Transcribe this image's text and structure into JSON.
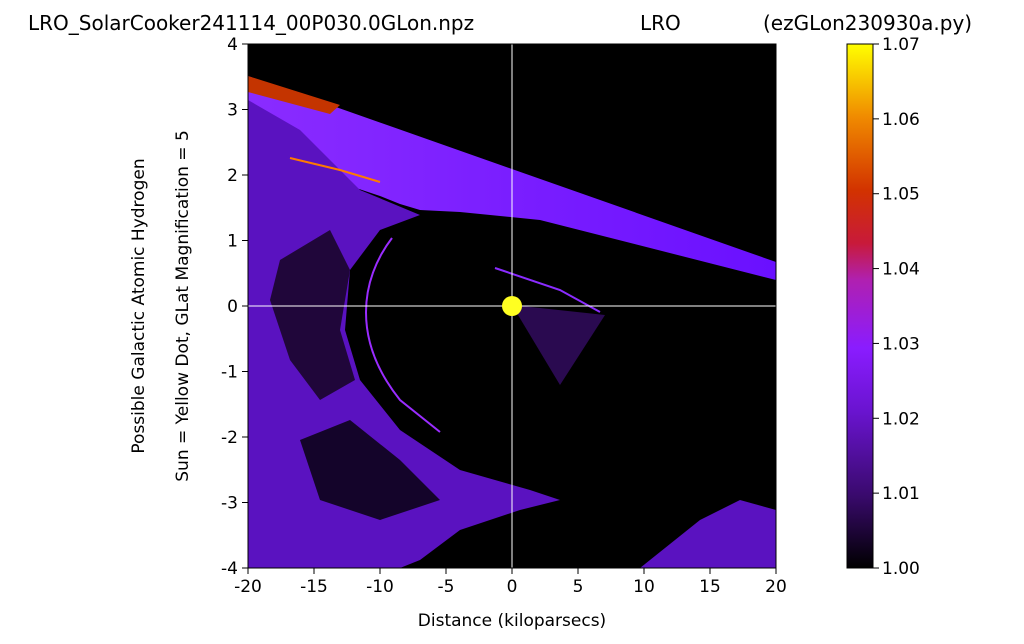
{
  "chart_data": {
    "type": "heatmap",
    "title_left": "LRO_SolarCooker241114_00P030.0GLon.npz",
    "title_center": "LRO",
    "title_right": "(ezGLon230930a.py)",
    "xlabel": "Distance (kiloparsecs)",
    "ylabel_line1": "Possible Galactic Atomic Hydrogen",
    "ylabel_line2": "Sun = Yellow Dot, GLat Magnification = 5",
    "xlim": [
      -20,
      20
    ],
    "ylim": [
      -4,
      4
    ],
    "x_ticks": [
      -20,
      -15,
      -10,
      -5,
      0,
      5,
      10,
      15,
      20
    ],
    "y_ticks": [
      4,
      3,
      2,
      1,
      0,
      -1,
      -2,
      -3,
      -4
    ],
    "x_tick_labels": [
      "-20",
      "-15",
      "-10",
      "-5",
      "0",
      "5",
      "10",
      "15",
      "20"
    ],
    "y_tick_labels": [
      "4",
      "3",
      "2",
      "1",
      "0",
      "-1",
      "-2",
      "-3",
      "-4"
    ],
    "colorbar": {
      "range": [
        1.0,
        1.07
      ],
      "ticks": [
        1.0,
        1.01,
        1.02,
        1.03,
        1.04,
        1.05,
        1.06,
        1.07
      ],
      "tick_labels": [
        "1.00",
        "1.01",
        "1.02",
        "1.03",
        "1.04",
        "1.05",
        "1.06",
        "1.07"
      ],
      "colormap": "gnuplot"
    },
    "sun": {
      "x": 0,
      "y": 0,
      "color": "#ffff22"
    },
    "crosshair": {
      "x": 0,
      "y": 0,
      "color": "#ffffff"
    },
    "background_value": 1.0,
    "colors": {
      "background": "#000000",
      "purple": "#7a18ff",
      "orange": "#ff7a00"
    }
  }
}
